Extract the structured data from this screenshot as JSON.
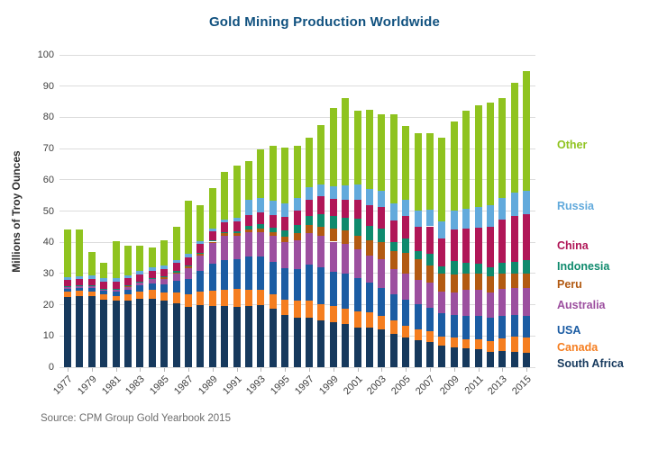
{
  "title": "Gold Mining Production Worldwide",
  "source_note": "Source: CPM Group Gold Yearbook 2015",
  "colors": {
    "title_text": "#10517f",
    "axis_text": "#3f3f3f",
    "gridline": "#dcdcdc",
    "source_text": "#6d6d6d"
  },
  "chart_data": {
    "type": "bar",
    "stacked": true,
    "title": "Gold Mining Production Worldwide",
    "xlabel": "",
    "ylabel": "Millions of Troy Ounces",
    "ylim": [
      0,
      100
    ],
    "ytick_step": 10,
    "xtick_every": 2,
    "grid": true,
    "legend_position": "right-of-last-bar",
    "units": "millions of troy ounces",
    "x": [
      1977,
      1978,
      1979,
      1980,
      1981,
      1982,
      1983,
      1984,
      1985,
      1986,
      1987,
      1988,
      1989,
      1990,
      1991,
      1992,
      1993,
      1994,
      1995,
      1996,
      1997,
      1998,
      1999,
      2000,
      2001,
      2002,
      2003,
      2004,
      2005,
      2006,
      2007,
      2008,
      2009,
      2010,
      2011,
      2012,
      2013,
      2014,
      2015
    ],
    "series": [
      {
        "name": "South Africa",
        "color": "#16395d",
        "values": [
          22.4,
          22.7,
          22.7,
          21.7,
          21.2,
          21.3,
          21.9,
          22.0,
          21.2,
          20.5,
          19.4,
          20.0,
          19.5,
          19.5,
          19.3,
          19.7,
          19.9,
          18.6,
          16.8,
          15.9,
          15.8,
          14.9,
          14.5,
          13.8,
          12.7,
          12.7,
          12.0,
          10.8,
          9.5,
          8.7,
          8.1,
          6.8,
          6.4,
          6.1,
          5.8,
          5.0,
          5.1,
          4.9,
          4.7
        ]
      },
      {
        "name": "Canada",
        "color": "#f57e20",
        "values": [
          1.7,
          1.7,
          1.6,
          1.7,
          1.7,
          2.1,
          2.3,
          2.8,
          2.8,
          3.3,
          3.8,
          4.3,
          5.1,
          5.4,
          5.7,
          5.2,
          4.9,
          4.7,
          4.8,
          5.3,
          5.5,
          5.3,
          5.1,
          5.0,
          5.1,
          4.9,
          4.5,
          4.1,
          3.8,
          3.3,
          3.3,
          3.1,
          3.1,
          2.9,
          3.2,
          3.3,
          4.0,
          4.9,
          4.9
        ]
      },
      {
        "name": "USA",
        "color": "#1b5ca3",
        "values": [
          1.0,
          1.0,
          1.0,
          1.0,
          1.4,
          1.5,
          2.0,
          2.1,
          2.4,
          3.8,
          5.0,
          6.5,
          8.6,
          9.5,
          9.5,
          10.6,
          10.6,
          10.5,
          10.2,
          10.2,
          11.6,
          11.8,
          11.0,
          11.3,
          10.8,
          9.6,
          8.9,
          8.3,
          8.2,
          8.1,
          7.7,
          7.5,
          7.2,
          7.4,
          7.5,
          7.6,
          7.4,
          6.8,
          6.9
        ]
      },
      {
        "name": "Australia",
        "color": "#9c4f9f",
        "values": [
          0.6,
          0.6,
          0.6,
          0.5,
          0.6,
          0.9,
          1.0,
          1.3,
          1.9,
          2.4,
          3.6,
          5.0,
          6.6,
          7.8,
          7.6,
          7.8,
          7.9,
          8.2,
          8.2,
          9.3,
          10.1,
          10.0,
          9.6,
          9.5,
          9.2,
          8.5,
          9.1,
          8.3,
          8.4,
          7.9,
          7.9,
          6.9,
          7.1,
          8.4,
          8.3,
          8.0,
          8.5,
          8.8,
          8.9
        ]
      },
      {
        "name": "Peru",
        "color": "#b25a12",
        "values": [
          0.1,
          0.1,
          0.2,
          0.2,
          0.2,
          0.2,
          0.2,
          0.2,
          0.4,
          0.4,
          0.4,
          0.4,
          0.4,
          0.6,
          0.7,
          0.7,
          1.0,
          1.3,
          1.8,
          2.1,
          2.5,
          3.0,
          4.1,
          4.3,
          4.4,
          5.0,
          5.5,
          5.6,
          6.7,
          6.5,
          5.5,
          5.8,
          5.9,
          5.3,
          5.3,
          5.2,
          4.9,
          4.5,
          4.7
        ]
      },
      {
        "name": "Indonesia",
        "color": "#0f8a6d",
        "values": [
          0.1,
          0.1,
          0.1,
          0.1,
          0.1,
          0.1,
          0.1,
          0.1,
          0.3,
          0.3,
          0.3,
          0.3,
          0.3,
          0.4,
          0.6,
          1.2,
          1.4,
          1.4,
          2.1,
          2.7,
          2.9,
          4.0,
          4.1,
          4.0,
          5.3,
          4.6,
          4.5,
          3.0,
          4.6,
          2.7,
          3.8,
          2.1,
          4.2,
          3.4,
          3.1,
          2.9,
          3.5,
          3.7,
          4.3
        ]
      },
      {
        "name": "China",
        "color": "#b01657",
        "values": [
          2.0,
          2.0,
          2.1,
          2.2,
          2.2,
          2.3,
          2.3,
          2.4,
          2.5,
          2.6,
          2.8,
          2.9,
          3.0,
          3.2,
          3.4,
          3.6,
          3.8,
          4.0,
          4.3,
          4.6,
          5.1,
          5.7,
          5.6,
          5.8,
          6.2,
          6.5,
          6.7,
          6.9,
          7.3,
          7.8,
          8.8,
          9.1,
          10.3,
          11.0,
          11.6,
          13.0,
          13.9,
          14.9,
          14.7
        ]
      },
      {
        "name": "Russia",
        "color": "#62aadc",
        "values": [
          1.0,
          1.0,
          1.0,
          1.0,
          1.0,
          1.0,
          1.0,
          1.0,
          1.0,
          1.0,
          1.0,
          1.0,
          1.0,
          1.0,
          1.0,
          4.7,
          4.8,
          4.6,
          4.2,
          4.0,
          4.0,
          3.7,
          4.0,
          4.6,
          4.9,
          5.2,
          5.4,
          5.5,
          5.2,
          5.2,
          5.2,
          5.5,
          5.9,
          6.2,
          6.5,
          6.8,
          7.0,
          7.3,
          7.5
        ]
      },
      {
        "name": "Other",
        "color": "#8fc31f",
        "values": [
          15.3,
          14.8,
          7.7,
          4.9,
          11.9,
          9.6,
          8.0,
          6.4,
          8.2,
          10.7,
          17.1,
          11.4,
          12.9,
          15.0,
          16.8,
          12.5,
          15.4,
          17.5,
          18.0,
          16.7,
          15.9,
          19.0,
          25.0,
          27.8,
          23.4,
          25.5,
          24.3,
          28.4,
          23.5,
          24.6,
          24.5,
          26.6,
          28.6,
          31.5,
          32.5,
          32.9,
          31.9,
          35.2,
          38.3
        ]
      }
    ],
    "totals": [
      44.2,
      44.0,
      37.0,
      33.3,
      40.3,
      39.0,
      38.8,
      38.3,
      40.7,
      45.0,
      53.4,
      51.8,
      57.4,
      62.4,
      64.6,
      66.0,
      69.7,
      70.8,
      70.4,
      70.8,
      73.4,
      77.4,
      83.0,
      86.1,
      82.0,
      82.5,
      80.9,
      80.9,
      77.2,
      74.8,
      74.8,
      73.4,
      78.7,
      82.2,
      83.8,
      84.7,
      86.2,
      91.0,
      94.9
    ]
  }
}
